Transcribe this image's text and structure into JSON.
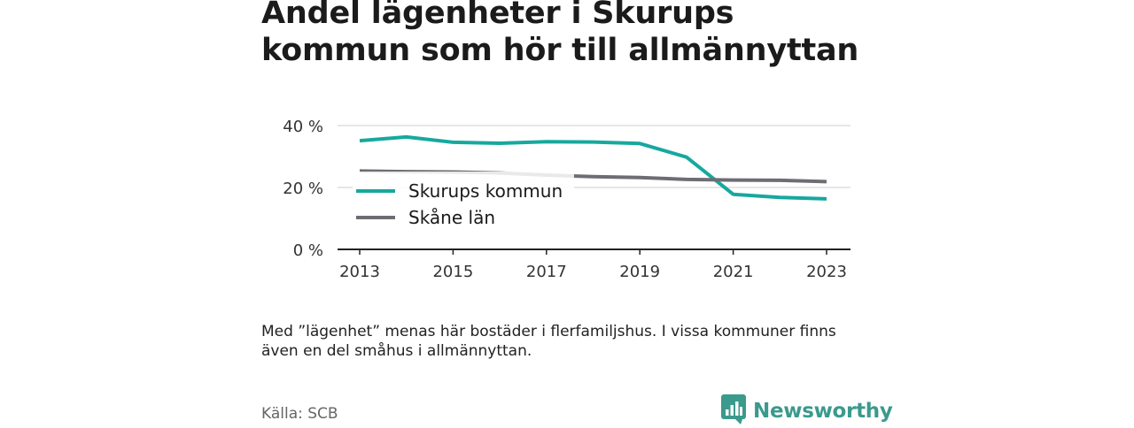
{
  "title": "Andel lägenheter i Skurups kommun som hör till allmännyttan",
  "note": "Med ”lägenhet” menas här bostäder i flerfamiljshus. I vissa kommuner finns även en del småhus i allmännyttan.",
  "source": "Källa: SCB",
  "brand": {
    "name": "Newsworthy",
    "icon": "newsworthy-logo-icon"
  },
  "colors": {
    "skurup": "#17a89e",
    "skane": "#6e6d73",
    "grid": "#dddddd",
    "axis": "#222222"
  },
  "chart_data": {
    "type": "line",
    "x": [
      2013,
      2014,
      2015,
      2016,
      2017,
      2018,
      2019,
      2020,
      2021,
      2022,
      2023
    ],
    "x_ticks": [
      "2013",
      "2015",
      "2017",
      "2019",
      "2021",
      "2023"
    ],
    "y_ticks": [
      "0 %",
      "20 %",
      "40 %"
    ],
    "ylim": [
      0,
      40
    ],
    "grid": true,
    "legend_position": "center-left",
    "series": [
      {
        "name": "Skurups kommun",
        "color": "#17a89e",
        "values": [
          35.1,
          36.3,
          34.6,
          34.3,
          34.8,
          34.7,
          34.2,
          29.8,
          17.8,
          16.8,
          16.3
        ]
      },
      {
        "name": "Skåne län",
        "color": "#6e6d73",
        "values": [
          25.3,
          25.1,
          25.0,
          24.7,
          24.0,
          23.5,
          23.2,
          22.6,
          22.4,
          22.3,
          21.9
        ]
      }
    ]
  }
}
